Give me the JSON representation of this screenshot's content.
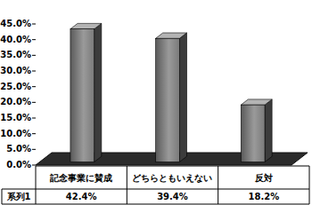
{
  "chart_data": {
    "type": "bar",
    "categories": [
      "記念事業に賛成",
      "どちらともいえない",
      "反対"
    ],
    "series": [
      {
        "name": "系列1",
        "color": "#808080",
        "values": [
          42.4,
          39.4,
          18.2
        ],
        "value_labels": [
          "42.4%",
          "39.4%",
          "18.2%"
        ]
      }
    ],
    "ylim": [
      0,
      45
    ],
    "yticks": [
      {
        "value": 0,
        "label": "0.0%"
      },
      {
        "value": 5,
        "label": "5.0%"
      },
      {
        "value": 10,
        "label": "10.0%"
      },
      {
        "value": 15,
        "label": "15.0%"
      },
      {
        "value": 20,
        "label": "20.0%"
      },
      {
        "value": 25,
        "label": "25.0%"
      },
      {
        "value": 30,
        "label": "30.0%"
      },
      {
        "value": 35,
        "label": "35.0%"
      },
      {
        "value": 40,
        "label": "40.0%"
      },
      {
        "value": 45,
        "label": "45.0%"
      }
    ],
    "data_labels": true
  }
}
